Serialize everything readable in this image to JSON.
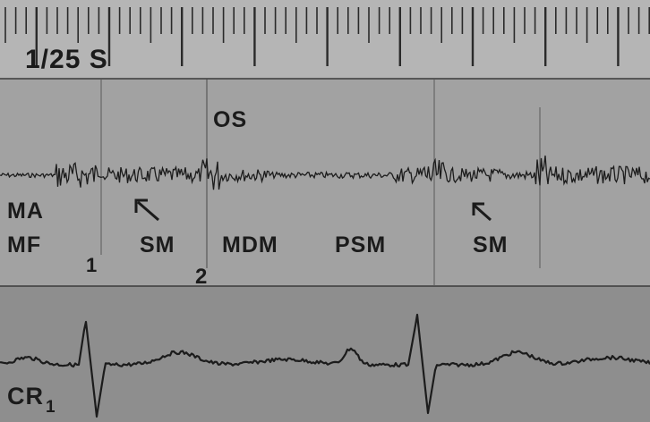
{
  "figure": {
    "timescale_label": "1/25 S",
    "phono_labels": {
      "os": "OS",
      "ma": "MA",
      "mf": "MF",
      "sm_first": "SM",
      "mdm": "MDM",
      "psm": "PSM",
      "sm_second": "SM"
    },
    "heart_sound_markers": {
      "first": "1",
      "second": "2"
    },
    "carotid_label": "CR",
    "carotid_subscript": "1",
    "colors": {
      "background": "#9c9c9c",
      "trace": "#1c1c1c",
      "band_light": "#b4b4b4",
      "band_mid": "#9a9a9a",
      "band_dark": "#8a8a8a"
    }
  }
}
